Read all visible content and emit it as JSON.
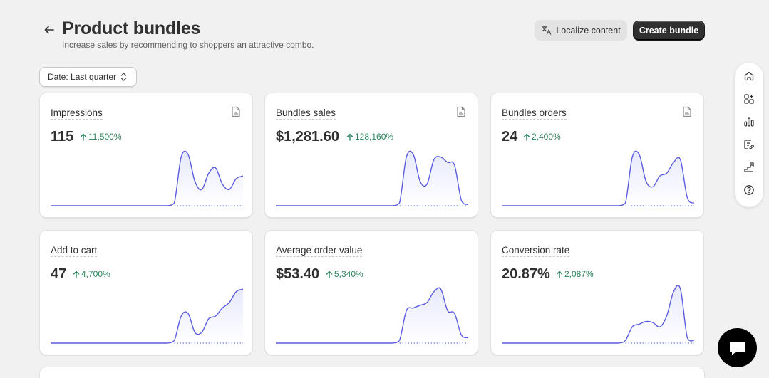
{
  "header": {
    "title": "Product bundles",
    "subtitle": "Increase sales by recommending to shoppers an attractive combo.",
    "localize_label": "Localize content",
    "create_label": "Create bundle"
  },
  "filter": {
    "date_label": "Date: Last quarter"
  },
  "accent_colors": {
    "delta_positive": "#29845a",
    "sparkline_line": "#5b5ce0",
    "sparkline_fill": "#e6e9fb",
    "primary_button": "#303030"
  },
  "cards": [
    {
      "title": "Impressions",
      "value": "115",
      "delta": "11,500%",
      "has_report_icon": true,
      "trend": [
        0,
        0,
        0,
        0,
        0,
        0,
        0,
        0,
        0,
        0,
        0,
        0,
        0,
        0,
        0,
        0,
        0,
        0,
        0.05,
        0.9,
        0.95,
        0.45,
        0.3,
        0.6,
        0.7,
        0.4,
        0.3,
        0.5,
        0.55
      ]
    },
    {
      "title": "Bundles sales",
      "value": "$1,281.60",
      "delta": "128,160%",
      "has_report_icon": true,
      "trend": [
        0,
        0,
        0,
        0,
        0,
        0,
        0,
        0,
        0,
        0,
        0,
        0,
        0,
        0,
        0,
        0,
        0,
        0,
        0.05,
        0.9,
        0.95,
        0.45,
        0.4,
        0.85,
        0.9,
        0.8,
        0.75,
        0.1,
        0.02
      ]
    },
    {
      "title": "Bundles orders",
      "value": "24",
      "delta": "2,400%",
      "has_report_icon": true,
      "trend": [
        0,
        0,
        0,
        0,
        0,
        0,
        0,
        0,
        0,
        0,
        0,
        0,
        0,
        0,
        0,
        0,
        0,
        0,
        0.05,
        0.9,
        0.95,
        0.45,
        0.35,
        0.55,
        0.6,
        0.8,
        0.85,
        0.15,
        0.05
      ]
    },
    {
      "title": "Add to cart",
      "value": "47",
      "delta": "4,700%",
      "has_report_icon": false,
      "trend": [
        0,
        0,
        0,
        0,
        0,
        0,
        0,
        0,
        0,
        0,
        0,
        0,
        0,
        0,
        0,
        0,
        0,
        0,
        0.05,
        0.5,
        0.55,
        0.2,
        0.2,
        0.45,
        0.5,
        0.65,
        0.75,
        0.95,
        1.0
      ]
    },
    {
      "title": "Average order value",
      "value": "$53.40",
      "delta": "5,340%",
      "has_report_icon": false,
      "trend": [
        0,
        0,
        0,
        0,
        0,
        0,
        0,
        0,
        0,
        0,
        0,
        0,
        0,
        0,
        0,
        0,
        0,
        0,
        0.05,
        0.6,
        0.65,
        0.7,
        0.75,
        0.95,
        1.0,
        0.6,
        0.55,
        0.15,
        0.1
      ]
    },
    {
      "title": "Conversion rate",
      "value": "20.87%",
      "delta": "2,087%",
      "has_report_icon": false,
      "trend": [
        0,
        0,
        0,
        0,
        0,
        0,
        0,
        0,
        0,
        0,
        0,
        0,
        0,
        0,
        0,
        0,
        0,
        0,
        0.05,
        0.3,
        0.35,
        0.4,
        0.38,
        0.3,
        0.5,
        0.95,
        1.0,
        0.1,
        0.05
      ]
    }
  ],
  "side_rail": {
    "icons": [
      "home-icon",
      "apps-add-icon",
      "analytics-icon",
      "catalog-edit-icon",
      "growth-stairs-icon",
      "help-icon"
    ]
  },
  "chat": {
    "icon": "chat-bubble-icon"
  }
}
